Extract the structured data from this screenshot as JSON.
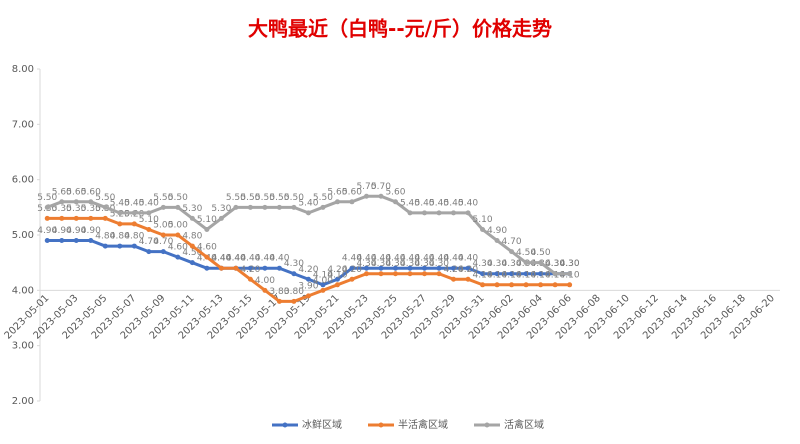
{
  "chart_data": {
    "type": "line",
    "title": "大鸭最近（白鸭--元/斤）价格走势",
    "categories": [
      "2023-05-01",
      null,
      "2023-05-03",
      null,
      "2023-05-05",
      null,
      "2023-05-07",
      null,
      "2023-05-09",
      null,
      "2023-05-11",
      null,
      "2023-05-13",
      null,
      "2023-05-15",
      null,
      "2023-05-17",
      null,
      "2023-05-19",
      null,
      "2023-05-21",
      null,
      "2023-05-23",
      null,
      "2023-05-25",
      null,
      "2023-05-27",
      null,
      "2023-05-29",
      null,
      "2023-05-31",
      null,
      "2023-06-02",
      null,
      "2023-06-04",
      null,
      "2023-06-06",
      null,
      "2023-06-08",
      null,
      "2023-06-10",
      null,
      "2023-06-12",
      null,
      "2023-06-14",
      null,
      "2023-06-16",
      null,
      "2023-06-18",
      null,
      "2023-06-20"
    ],
    "series": [
      {
        "name": "冰鲜区域",
        "color": "#4472c4",
        "values": [
          4.9,
          4.9,
          4.9,
          4.9,
          4.8,
          4.8,
          4.8,
          4.7,
          4.7,
          4.6,
          4.5,
          4.4,
          4.4,
          4.4,
          4.4,
          4.4,
          4.4,
          4.3,
          4.2,
          4.1,
          4.2,
          4.4,
          4.4,
          4.4,
          4.4,
          4.4,
          4.4,
          4.4,
          4.4,
          4.4,
          4.3,
          4.3,
          4.3,
          4.3,
          4.3,
          4.3,
          4.3,
          null,
          null,
          null,
          null,
          null,
          null,
          null,
          null,
          null,
          null,
          null,
          null,
          null,
          null
        ],
        "value_labels": [
          "4.90",
          "4.90",
          "4.90",
          "4.90",
          "4.80",
          "4.80",
          "4.80",
          "4.70",
          "4.70",
          "4.60",
          "4.50",
          "4.40",
          "4.40",
          "4.40",
          "4.40",
          "4.40",
          "4.40",
          "4.30",
          "4.20",
          "4.10",
          "4.20",
          "4.40",
          "4.40",
          "4.40",
          "4.40",
          "4.40",
          "4.40",
          "4.40",
          "4.40",
          "4.40",
          "4.30",
          "4.30",
          "4.30",
          "4.30",
          "4.30",
          "4.30",
          "4.30",
          null,
          null,
          null,
          null,
          null,
          null,
          null,
          null,
          null,
          null,
          null,
          null,
          null,
          null
        ]
      },
      {
        "name": "半活禽区域",
        "color": "#ed7d31",
        "values": [
          5.3,
          5.3,
          5.3,
          5.3,
          5.3,
          5.2,
          5.2,
          5.1,
          5.0,
          5.0,
          4.8,
          4.6,
          4.4,
          4.4,
          4.2,
          4.0,
          3.8,
          3.8,
          3.9,
          4.0,
          4.1,
          4.2,
          4.3,
          4.3,
          4.3,
          4.3,
          4.3,
          4.3,
          4.2,
          4.2,
          4.1,
          4.1,
          4.1,
          4.1,
          4.1,
          4.1,
          4.1,
          null,
          null,
          null,
          null,
          null,
          null,
          null,
          null,
          null,
          null,
          null,
          null,
          null,
          null
        ],
        "value_labels": [
          "5.30",
          "5.30",
          "5.30",
          "5.30",
          "5.30",
          "5.20",
          "5.20",
          "5.10",
          "5.00",
          "5.00",
          "4.80",
          "4.60",
          "4.40",
          "4.40",
          "4.20",
          "4.00",
          "3.80",
          "3.80",
          "3.90",
          "4.00",
          "4.10",
          "4.20",
          "4.30",
          "4.30",
          "4.30",
          "4.30",
          "4.30",
          "4.30",
          "4.20",
          "4.20",
          "4.10",
          "4.10",
          "4.10",
          "4.10",
          "4.10",
          "4.10",
          "4.10",
          null,
          null,
          null,
          null,
          null,
          null,
          null,
          null,
          null,
          null,
          null,
          null,
          null,
          null
        ]
      },
      {
        "name": "活禽区域",
        "color": "#a5a5a5",
        "values": [
          5.5,
          5.6,
          5.6,
          5.6,
          5.5,
          5.4,
          5.4,
          5.4,
          5.5,
          5.5,
          5.3,
          5.1,
          5.3,
          5.5,
          5.5,
          5.5,
          5.5,
          5.5,
          5.4,
          5.5,
          5.6,
          5.6,
          5.7,
          5.7,
          5.6,
          5.4,
          5.4,
          5.4,
          5.4,
          5.4,
          5.1,
          4.9,
          4.7,
          4.5,
          4.5,
          4.3,
          4.3,
          null,
          null,
          null,
          null,
          null,
          null,
          null,
          null,
          null,
          null,
          null,
          null,
          null,
          null
        ],
        "value_labels": [
          "5.50",
          "5.60",
          "5.60",
          "5.60",
          "5.50",
          "5.40",
          "5.40",
          "5.40",
          "5.50",
          "5.50",
          "5.30",
          "5.10",
          "5.30",
          "5.50",
          "5.50",
          "5.50",
          "5.50",
          "5.50",
          "5.40",
          "5.50",
          "5.60",
          "5.60",
          "5.70",
          "5.70",
          "5.60",
          "5.40",
          "5.40",
          "5.40",
          "5.40",
          "5.40",
          "5.10",
          "4.90",
          "4.70",
          "4.50",
          "4.50",
          "4.30",
          "4.30",
          null,
          null,
          null,
          null,
          null,
          null,
          null,
          null,
          null,
          null,
          null,
          null,
          null,
          null
        ]
      }
    ],
    "ylim": [
      2,
      8
    ],
    "yticks": [
      {
        "value": 2,
        "label": "2.00"
      },
      {
        "value": 3,
        "label": "3.00"
      },
      {
        "value": 4,
        "label": "4.00"
      },
      {
        "value": 5,
        "label": "5.00"
      },
      {
        "value": 6,
        "label": "6.00"
      },
      {
        "value": 7,
        "label": "7.00"
      },
      {
        "value": 8,
        "label": "8.00"
      }
    ],
    "grid": false,
    "legend": "bottom"
  }
}
